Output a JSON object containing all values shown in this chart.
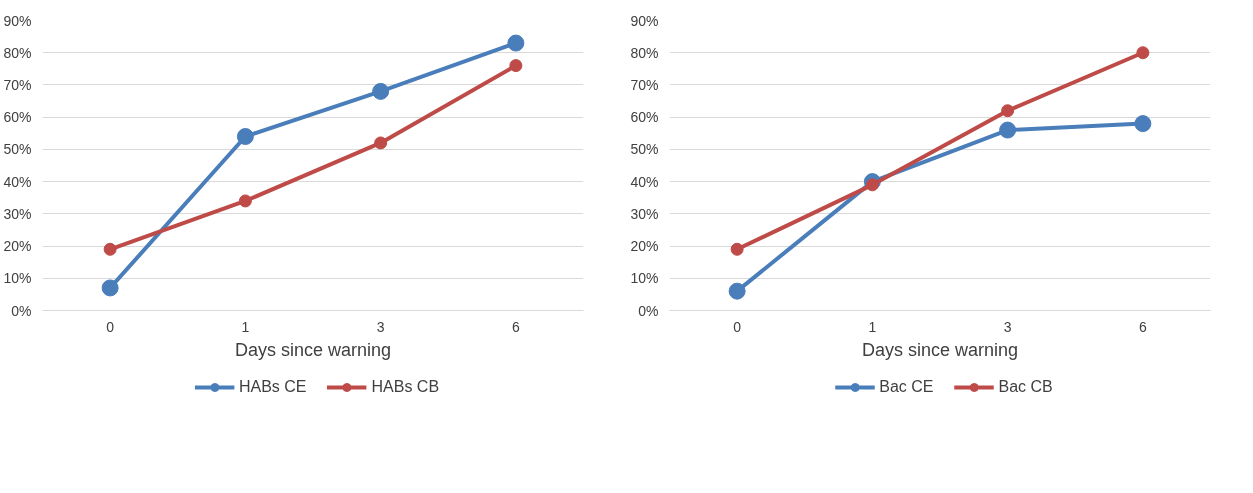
{
  "chart_data": [
    {
      "type": "line",
      "xlabel": "Days since warning",
      "categories": [
        "0",
        "1",
        "3",
        "6"
      ],
      "series": [
        {
          "name": "HABs CE",
          "color": "#4a7ebb",
          "values": [
            7,
            54,
            68,
            83
          ]
        },
        {
          "name": "HABs CB",
          "color": "#be4b48",
          "values": [
            19,
            34,
            52,
            76
          ]
        }
      ],
      "ylim": [
        0,
        90
      ],
      "yticks": [
        {
          "value": 0,
          "label": "0%"
        },
        {
          "value": 10,
          "label": "10%"
        },
        {
          "value": 20,
          "label": "20%"
        },
        {
          "value": 30,
          "label": "30%"
        },
        {
          "value": 40,
          "label": "40%"
        },
        {
          "value": 50,
          "label": "50%"
        },
        {
          "value": 60,
          "label": "60%"
        },
        {
          "value": 70,
          "label": "70%"
        },
        {
          "value": 80,
          "label": "80%"
        },
        {
          "value": 90,
          "label": "90%"
        }
      ],
      "grid": "y",
      "legend": "bottom",
      "marker": "circle",
      "line_style": "solid"
    },
    {
      "type": "line",
      "xlabel": "Days since warning",
      "categories": [
        "0",
        "1",
        "3",
        "6"
      ],
      "series": [
        {
          "name": "Bac CE",
          "color": "#4a7ebb",
          "values": [
            6,
            40,
            56,
            58
          ]
        },
        {
          "name": "Bac CB",
          "color": "#be4b48",
          "values": [
            19,
            39,
            62,
            80
          ]
        }
      ],
      "ylim": [
        0,
        90
      ],
      "yticks": [
        {
          "value": 0,
          "label": "0%"
        },
        {
          "value": 10,
          "label": "10%"
        },
        {
          "value": 20,
          "label": "20%"
        },
        {
          "value": 30,
          "label": "30%"
        },
        {
          "value": 40,
          "label": "40%"
        },
        {
          "value": 50,
          "label": "50%"
        },
        {
          "value": 60,
          "label": "60%"
        },
        {
          "value": 70,
          "label": "70%"
        },
        {
          "value": 80,
          "label": "80%"
        },
        {
          "value": 90,
          "label": "90%"
        }
      ],
      "grid": "y",
      "legend": "bottom",
      "marker": "circle",
      "line_style": "solid"
    }
  ]
}
